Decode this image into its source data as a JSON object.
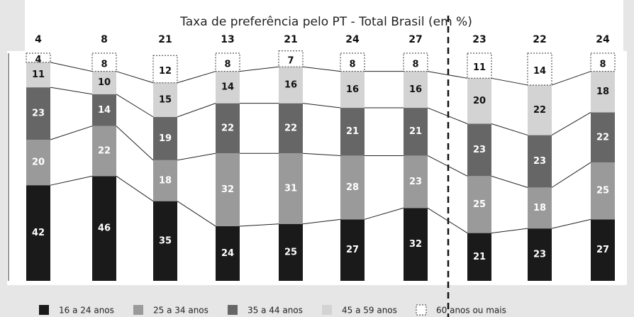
{
  "chart_data": {
    "type": "stacked_bar",
    "title": "Taxa de preferência pelo PT - Total Brasil (em %)",
    "categories": [
      null,
      null,
      null,
      null,
      null,
      null,
      null,
      null,
      null,
      null
    ],
    "preference_rate": [
      4,
      8,
      21,
      13,
      21,
      24,
      27,
      23,
      22,
      24
    ],
    "ylim": [
      0,
      100
    ],
    "series": [
      {
        "name": "16 a 24 anos",
        "color": "#1a1a1a",
        "values": [
          42,
          46,
          35,
          24,
          25,
          27,
          32,
          21,
          23,
          27
        ]
      },
      {
        "name": "25 a 34 anos",
        "color": "#9a9a9a",
        "values": [
          20,
          22,
          18,
          32,
          31,
          28,
          23,
          25,
          18,
          25
        ]
      },
      {
        "name": "35 a 44 anos",
        "color": "#666666",
        "values": [
          23,
          14,
          19,
          22,
          22,
          21,
          21,
          23,
          23,
          22
        ]
      },
      {
        "name": "45 a 59 anos",
        "color": "#d3d3d3",
        "values": [
          11,
          10,
          15,
          14,
          16,
          16,
          16,
          20,
          22,
          18
        ]
      },
      {
        "name": "60 anos ou mais",
        "color": "#ffffff",
        "values": [
          4,
          8,
          12,
          8,
          7,
          8,
          8,
          11,
          14,
          8
        ]
      }
    ]
  }
}
